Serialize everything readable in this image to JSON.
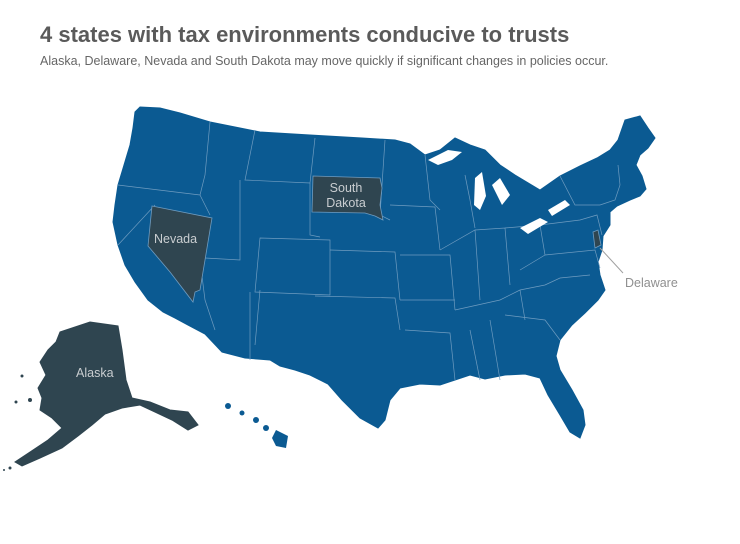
{
  "title": "4 states with tax environments conducive to trusts",
  "subtitle": "Alaska, Delaware, Nevada and South Dakota may move quickly if significant changes in policies occur.",
  "colors": {
    "default_state": "#0b5a92",
    "highlight_state": "#2f4550",
    "border": "#6f9cc0"
  },
  "highlighted_states": [
    {
      "name": "Alaska",
      "label": "Alaska"
    },
    {
      "name": "Delaware",
      "label": "Delaware"
    },
    {
      "name": "Nevada",
      "label": "Nevada"
    },
    {
      "name": "South Dakota",
      "label_line1": "South",
      "label_line2": "Dakota"
    }
  ]
}
